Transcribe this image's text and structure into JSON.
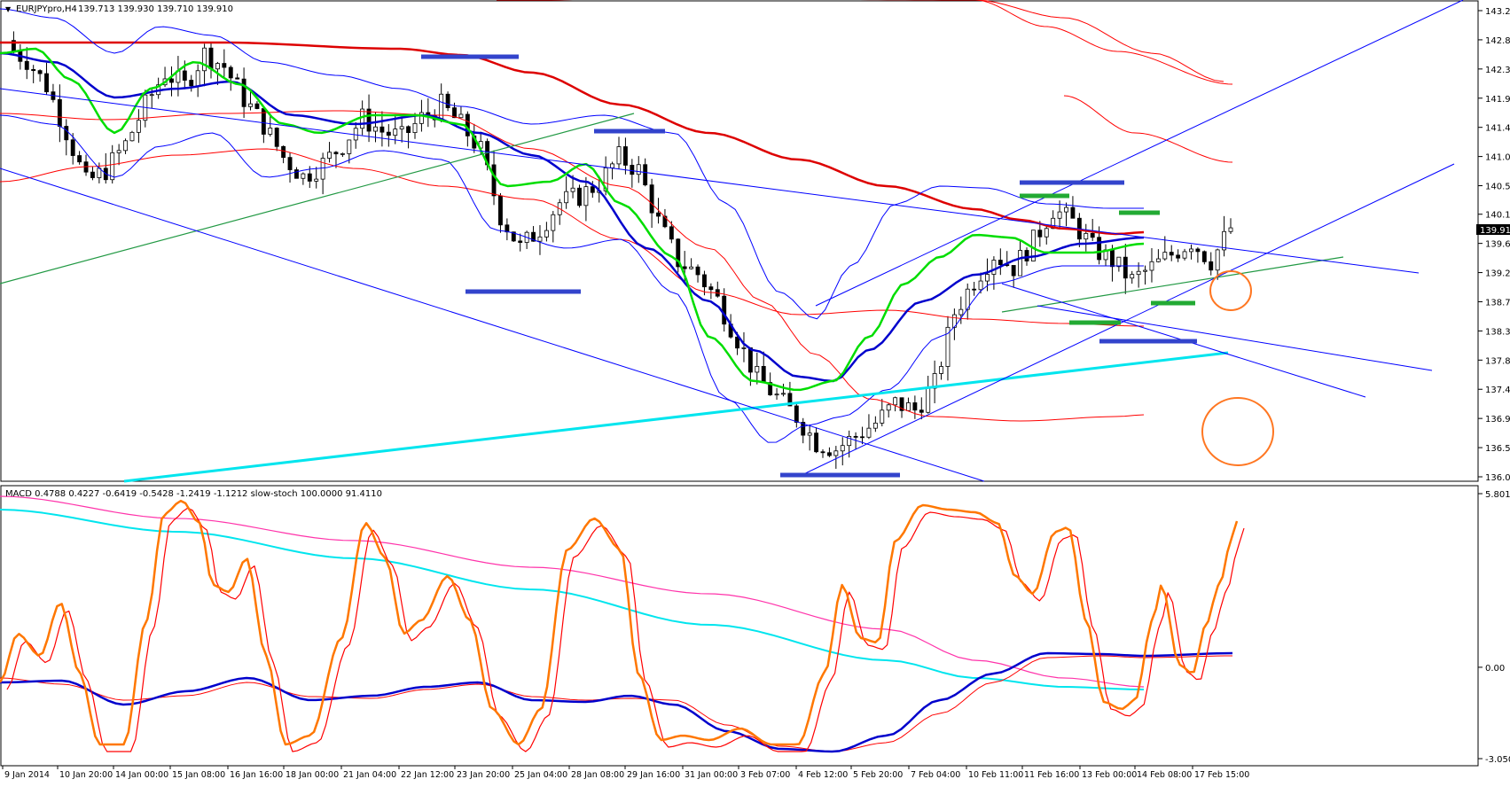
{
  "header": {
    "menu_glyph": "▼",
    "symbol": "EURJPYpro,H4",
    "ohlc": "139.713 139.930 139.710 139.910"
  },
  "price_panel": {
    "current_price": "139.910",
    "price_ticks": [
      "143.260",
      "142.810",
      "142.360",
      "141.910",
      "141.460",
      "141.010",
      "140.560",
      "140.120",
      "139.670",
      "139.220",
      "138.770",
      "138.320",
      "137.870",
      "137.420",
      "136.970",
      "136.520",
      "136.070"
    ]
  },
  "indicator_panel": {
    "label": "MACD 0.4788 0.4227 -0.6419 -0.5428 -1.2419 -1.1212  slow-stoch 100.0000 91.4110",
    "ticks": [
      "5.8019",
      "0.00",
      "-3.0504"
    ]
  },
  "time_axis": {
    "labels": [
      "9 Jan 2014",
      "10 Jan 20:00",
      "14 Jan 00:00",
      "15 Jan 08:00",
      "16 Jan 16:00",
      "18 Jan 00:00",
      "21 Jan 04:00",
      "22 Jan 12:00",
      "23 Jan 20:00",
      "25 Jan 04:00",
      "28 Jan 08:00",
      "29 Jan 16:00",
      "31 Jan 00:00",
      "3 Feb 07:00",
      "4 Feb 12:00",
      "5 Feb 20:00",
      "7 Feb 04:00",
      "10 Feb 11:00",
      "11 Feb 16:00",
      "13 Feb 00:00",
      "14 Feb 08:00",
      "17 Feb 15:00"
    ]
  },
  "colors": {
    "candle": "#000000",
    "ema_green": "#00dd00",
    "ema_blue": "#0000cc",
    "ema_red": "#dd0000",
    "bands_blue": "#0000ff",
    "bands_red": "#ff0000",
    "trend_cyan": "#00e5ee",
    "trend_green": "#229944",
    "stoch": "#ff7700",
    "macd_pink": "#ff33aa",
    "zone_blue": "#3344cc",
    "zone_green": "#22aa33",
    "circle": "#ff7722"
  },
  "chart_data": [
    {
      "type": "candlestick",
      "symbol": "EURJPYpro",
      "timeframe": "H4",
      "ylim": [
        136.07,
        143.26
      ],
      "close_series": [
        142.7,
        142.5,
        142.1,
        141.4,
        140.6,
        140.8,
        141.2,
        141.8,
        142.3,
        142.1,
        142.6,
        142.4,
        141.9,
        141.5,
        141.0,
        140.7,
        140.9,
        141.2,
        141.6,
        141.4,
        141.3,
        141.6,
        141.8,
        141.5,
        141.1,
        140.1,
        139.6,
        139.9,
        140.3,
        140.4,
        140.6,
        141.0,
        140.8,
        140.0,
        139.4,
        139.2,
        138.8,
        138.2,
        137.6,
        137.3,
        137.0,
        136.6,
        136.5,
        136.7,
        136.9,
        137.2,
        137.1,
        137.5,
        138.6,
        139.1,
        139.5,
        139.3,
        139.7,
        140.2,
        140.0,
        139.6,
        139.4,
        139.1,
        139.3,
        139.5,
        139.7,
        139.4,
        139.9
      ],
      "current": 139.91
    },
    {
      "type": "line",
      "name": "MACD",
      "ylim": [
        -3.0504,
        5.8019
      ],
      "values": [
        0.4788,
        0.4227,
        -0.6419,
        -0.5428,
        -1.2419,
        -1.1212
      ]
    },
    {
      "type": "line",
      "name": "slow-stoch",
      "ylim": [
        0,
        100
      ],
      "values": [
        100.0,
        91.411
      ]
    }
  ]
}
